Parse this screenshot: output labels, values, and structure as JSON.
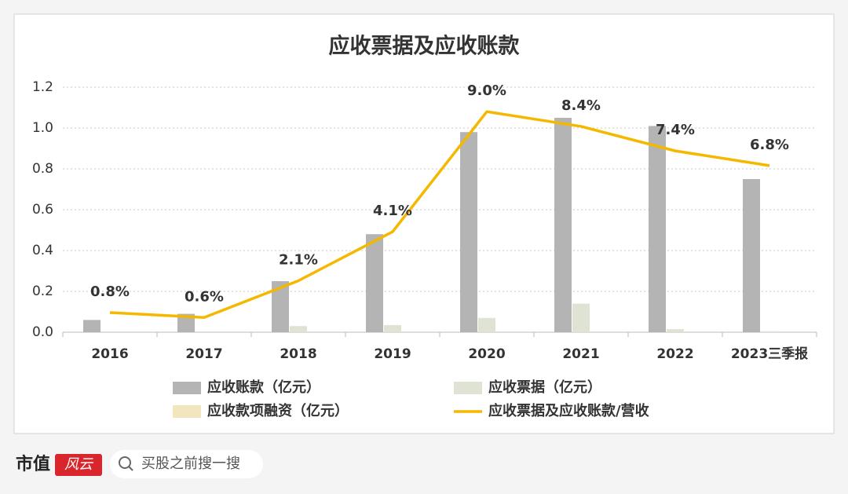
{
  "chart_data": {
    "type": "bar_line",
    "title": "应收票据及应收账款",
    "categories": [
      "2016",
      "2017",
      "2018",
      "2019",
      "2020",
      "2021",
      "2022",
      "2023三季报"
    ],
    "series": [
      {
        "name": "应收账款（亿元）",
        "color": "#b4b4b4",
        "type": "bar",
        "values": [
          0.06,
          0.09,
          0.25,
          0.48,
          0.98,
          1.05,
          1.01,
          0.75
        ]
      },
      {
        "name": "应收票据（亿元）",
        "color": "#dfe3d3",
        "type": "bar",
        "values": [
          0,
          0,
          0.03,
          0.035,
          0.07,
          0.14,
          0.015,
          0.005
        ]
      },
      {
        "name": "应收款项融资（亿元）",
        "color": "#f2e6bf",
        "type": "bar",
        "values": [
          0,
          0,
          0,
          0,
          0,
          0,
          0,
          0
        ]
      },
      {
        "name": "应收票据及应收账款/营收",
        "color": "#f5b800",
        "type": "line",
        "axis": "y2",
        "values": [
          0.8,
          0.6,
          2.1,
          4.1,
          9.0,
          8.4,
          7.4,
          6.8
        ],
        "value_labels": [
          "0.8%",
          "0.6%",
          "2.1%",
          "4.1%",
          "9.0%",
          "8.4%",
          "7.4%",
          "6.8%"
        ]
      }
    ],
    "ylim": [
      0,
      1.2
    ],
    "yticks": [
      {
        "value": 0,
        "label": "0.0"
      },
      0.2,
      0.4,
      0.6,
      0.8,
      {
        "value": 1,
        "label": "1.0"
      },
      1.2
    ],
    "y2lim": [
      0,
      10
    ],
    "grid": true
  },
  "footer": {
    "brand": "市值",
    "logo": "风云",
    "search": "买股之前搜一搜"
  }
}
